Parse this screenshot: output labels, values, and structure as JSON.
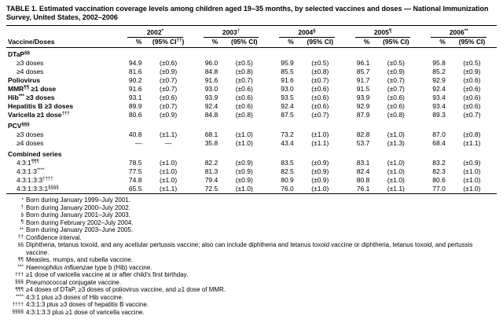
{
  "title": "TABLE 1. Estimated vaccination coverage levels among children aged 19–35 months, by selected vaccines and doses — National Immunization Survey, United States, 2002–2006",
  "table": {
    "row_header": "Vaccine/Doses",
    "pct_label": "%",
    "years": [
      {
        "name_parts": [
          {
            "t": "2002"
          },
          {
            "t": "*",
            "sup": true
          }
        ],
        "ci_parts": [
          {
            "t": "(95% CI"
          },
          {
            "t": "††",
            "sup": true
          },
          {
            "t": ")"
          }
        ]
      },
      {
        "name_parts": [
          {
            "t": "2003"
          },
          {
            "t": "†",
            "sup": true
          }
        ],
        "ci_parts": [
          {
            "t": "(95% CI)"
          }
        ]
      },
      {
        "name_parts": [
          {
            "t": "2004"
          },
          {
            "t": "§",
            "sup": true
          }
        ],
        "ci_parts": [
          {
            "t": "(95% CI)"
          }
        ]
      },
      {
        "name_parts": [
          {
            "t": "2005"
          },
          {
            "t": "¶",
            "sup": true
          }
        ],
        "ci_parts": [
          {
            "t": "(95% CI)"
          }
        ]
      },
      {
        "name_parts": [
          {
            "t": "2006"
          },
          {
            "t": "**",
            "sup": true
          }
        ],
        "ci_parts": [
          {
            "t": "(95% CI)"
          }
        ]
      }
    ],
    "rows": [
      {
        "type": "section",
        "label_parts": [
          {
            "t": "DTaP"
          },
          {
            "t": "§§",
            "sup": true
          }
        ]
      },
      {
        "type": "data",
        "indent": true,
        "label_parts": [
          {
            "t": "≥3 doses"
          }
        ],
        "values": [
          "94.9",
          "(±0.6)",
          "96.0",
          "(±0.5)",
          "95.9",
          "(±0.5)",
          "96.1",
          "(±0.5)",
          "95.8",
          "(±0.5)"
        ]
      },
      {
        "type": "data",
        "indent": true,
        "label_parts": [
          {
            "t": "≥4 doses"
          }
        ],
        "values": [
          "81.6",
          "(±0.9)",
          "84.8",
          "(±0.8)",
          "85.5",
          "(±0.8)",
          "85.7",
          "(±0.9)",
          "85.2",
          "(±0.9)"
        ]
      },
      {
        "type": "data",
        "bold": true,
        "label_parts": [
          {
            "t": "Poliovirus"
          }
        ],
        "values": [
          "90.2",
          "(±0.7)",
          "91.6",
          "(±0.7)",
          "91.6",
          "(±0.7)",
          "91.7",
          "(±0.7)",
          "92.9",
          "(±0.6)"
        ]
      },
      {
        "type": "data",
        "bold": true,
        "label_parts": [
          {
            "t": "MMR"
          },
          {
            "t": "¶¶",
            "sup": true
          },
          {
            "t": " ≥1 dose"
          }
        ],
        "values": [
          "91.6",
          "(±0.7)",
          "93.0",
          "(±0.6)",
          "93.0",
          "(±0.6)",
          "91.5",
          "(±0.7)",
          "92.4",
          "(±0.6)"
        ]
      },
      {
        "type": "data",
        "bold": true,
        "label_parts": [
          {
            "t": "Hib"
          },
          {
            "t": "***",
            "sup": true
          },
          {
            "t": " ≥3 doses"
          }
        ],
        "values": [
          "93.1",
          "(±0.6)",
          "93.9",
          "(±0.6)",
          "93.5",
          "(±0.6)",
          "93.9",
          "(±0.6)",
          "93.4",
          "(±0.6)"
        ]
      },
      {
        "type": "data",
        "bold": true,
        "label_parts": [
          {
            "t": "Hepatitis B ≥3 doses"
          }
        ],
        "values": [
          "89.9",
          "(±0.7)",
          "92.4",
          "(±0.6)",
          "92.4",
          "(±0.6)",
          "92.9",
          "(±0.6)",
          "93.4",
          "(±0.6)"
        ]
      },
      {
        "type": "data",
        "bold": true,
        "label_parts": [
          {
            "t": "Varicella ≥1 dose"
          },
          {
            "t": "†††",
            "sup": true
          }
        ],
        "values": [
          "80.6",
          "(±0.9)",
          "84.8",
          "(±0.8)",
          "87.5",
          "(±0.7)",
          "87.9",
          "(±0.8)",
          "89.3",
          "(±0.7)"
        ]
      },
      {
        "type": "section",
        "label_parts": [
          {
            "t": "PCV"
          },
          {
            "t": "§§§",
            "sup": true
          }
        ]
      },
      {
        "type": "data",
        "indent": true,
        "label_parts": [
          {
            "t": "≥3 doses"
          }
        ],
        "values": [
          "40.8",
          "(±1.1)",
          "68.1",
          "(±1.0)",
          "73.2",
          "(±1.0)",
          "82.8",
          "(±1.0)",
          "87.0",
          "(±0.8)"
        ]
      },
      {
        "type": "data",
        "indent": true,
        "label_parts": [
          {
            "t": "≥4 doses"
          }
        ],
        "values": [
          "—",
          "—",
          "35.8",
          "(±1.0)",
          "43.4",
          "(±1.1)",
          "53.7",
          "(±1.3)",
          "68.4",
          "(±1.1)"
        ]
      },
      {
        "type": "section",
        "label_parts": [
          {
            "t": "Combined series"
          }
        ]
      },
      {
        "type": "data",
        "indent": true,
        "label_parts": [
          {
            "t": "4:3:1"
          },
          {
            "t": "¶¶¶",
            "sup": true
          }
        ],
        "values": [
          "78.5",
          "(±1.0)",
          "82.2",
          "(±0.9)",
          "83.5",
          "(±0.9)",
          "83.1",
          "(±1.0)",
          "83.2",
          "(±0.9)"
        ]
      },
      {
        "type": "data",
        "indent": true,
        "label_parts": [
          {
            "t": "4:3:1:3"
          },
          {
            "t": "****",
            "sup": true
          }
        ],
        "values": [
          "77.5",
          "(±1.0)",
          "81.3",
          "(±0.9)",
          "82.5",
          "(±0.9)",
          "82.4",
          "(±1.0)",
          "82.3",
          "(±1.0)"
        ]
      },
      {
        "type": "data",
        "indent": true,
        "label_parts": [
          {
            "t": "4:3:1:3:3"
          },
          {
            "t": "††††",
            "sup": true
          }
        ],
        "values": [
          "74.8",
          "(±1.0)",
          "79.4",
          "(±0.9)",
          "80.9",
          "(±0.9)",
          "80.8",
          "(±1.0)",
          "80.6",
          "(±1.0)"
        ]
      },
      {
        "type": "data",
        "indent": true,
        "label_parts": [
          {
            "t": "4:3:1:3:3:1"
          },
          {
            "t": "§§§§",
            "sup": true
          }
        ],
        "values": [
          "65.5",
          "(±1.1)",
          "72.5",
          "(±1.0)",
          "76.0",
          "(±1.0)",
          "76.1",
          "(±1.1)",
          "77.0",
          "(±1.0)"
        ]
      }
    ]
  },
  "footnotes": [
    {
      "symbol": "*",
      "segments": [
        {
          "t": "Born during January 1999–July 2001."
        }
      ]
    },
    {
      "symbol": "†",
      "segments": [
        {
          "t": "Born during January 2000–July 2002."
        }
      ]
    },
    {
      "symbol": "§",
      "segments": [
        {
          "t": "Born during January 2001–July 2003."
        }
      ]
    },
    {
      "symbol": "¶",
      "segments": [
        {
          "t": "Born during February 2002–July 2004."
        }
      ]
    },
    {
      "symbol": "**",
      "segments": [
        {
          "t": "Born during January 2003–June 2005."
        }
      ]
    },
    {
      "symbol": "††",
      "segments": [
        {
          "t": "Confidence interval."
        }
      ]
    },
    {
      "symbol": "§§",
      "segments": [
        {
          "t": "Diphtheria, tetanus toxoid, and any acellular pertussis vaccine; also can include diphtheria and tetanus toxoid vaccine or diphtheria, tetanus toxoid, and pertussis vaccine."
        }
      ]
    },
    {
      "symbol": "¶¶",
      "segments": [
        {
          "t": "Measles, mumps, and rubella vaccine."
        }
      ]
    },
    {
      "symbol": "***",
      "segments": [
        {
          "t": "Haemophilus influenzae",
          "italic": true
        },
        {
          "t": " type b (Hib) vaccine."
        }
      ]
    },
    {
      "symbol": "†††",
      "segments": [
        {
          "t": "≥1 dose of varicella vaccine at or after child's first birthday."
        }
      ]
    },
    {
      "symbol": "§§§",
      "segments": [
        {
          "t": "Pneumococcal conjugate vaccine."
        }
      ]
    },
    {
      "symbol": "¶¶¶",
      "segments": [
        {
          "t": "≥4 doses of DTaP, ≥3 doses of poliovirus vaccine, and ≥1 dose of MMR."
        }
      ]
    },
    {
      "symbol": "****",
      "segments": [
        {
          "t": "4:3:1 plus ≥3 doses of Hib vaccine."
        }
      ]
    },
    {
      "symbol": "††††",
      "segments": [
        {
          "t": "4:3:1:3 plus ≥3 doses of hepatitis B vaccine."
        }
      ]
    },
    {
      "symbol": "§§§§",
      "segments": [
        {
          "t": "4:3:1:3:3 plus ≥1 dose of varicella vaccine."
        }
      ]
    }
  ]
}
